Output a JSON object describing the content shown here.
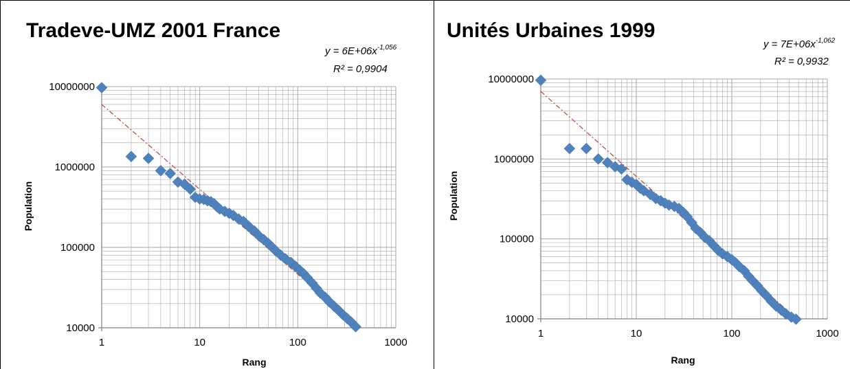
{
  "colors": {
    "marker": "#4F81BD",
    "trendline": "#C0504D",
    "grid": "#A6A6A6",
    "border": "#000000"
  },
  "chart_data": [
    {
      "type": "scatter",
      "title": "Tradeve-UMZ 2001 France",
      "equation": {
        "prefix": "y = 6E+06x",
        "exponent": "-1,056"
      },
      "r2": "R² = 0,9904",
      "xlabel": "Rang",
      "ylabel": "Population",
      "x_scale": "log",
      "y_scale": "log",
      "xlim": [
        1,
        1000
      ],
      "ylim": [
        10000,
        10000000
      ],
      "xticks": [
        "1",
        "10",
        "100",
        "1000"
      ],
      "yticks": [
        "10000",
        "100000",
        "1000000",
        "10000000"
      ],
      "grid": true,
      "trendline": {
        "type": "power",
        "a": 6000000,
        "b": -1.056,
        "style": "dash-dot"
      },
      "series": [
        {
          "marker": "diamond",
          "points": [
            [
              1,
              9700000
            ],
            [
              2,
              1350000
            ],
            [
              3,
              1280000
            ],
            [
              4,
              900000
            ],
            [
              5,
              830000
            ],
            [
              6,
              650000
            ],
            [
              7,
              610000
            ],
            [
              8,
              530000
            ],
            [
              9,
              420000
            ],
            [
              10,
              400000
            ],
            [
              11,
              395000
            ],
            [
              12,
              380000
            ],
            [
              13,
              370000
            ],
            [
              14,
              350000
            ],
            [
              15,
              320000
            ],
            [
              16,
              300000
            ],
            [
              18,
              280000
            ],
            [
              20,
              265000
            ],
            [
              22,
              250000
            ],
            [
              25,
              225000
            ],
            [
              28,
              210000
            ],
            [
              32,
              180000
            ],
            [
              36,
              160000
            ],
            [
              40,
              140000
            ],
            [
              45,
              125000
            ],
            [
              50,
              112000
            ],
            [
              55,
              100000
            ],
            [
              60,
              90000
            ],
            [
              67,
              80000
            ],
            [
              75,
              72000
            ],
            [
              85,
              65000
            ],
            [
              95,
              58000
            ],
            [
              105,
              52000
            ],
            [
              115,
              47000
            ],
            [
              125,
              42000
            ],
            [
              140,
              36000
            ],
            [
              155,
              31000
            ],
            [
              170,
              27000
            ],
            [
              190,
              24000
            ],
            [
              210,
              21000
            ],
            [
              235,
              18500
            ],
            [
              260,
              16500
            ],
            [
              290,
              14500
            ],
            [
              320,
              13000
            ],
            [
              350,
              11800
            ],
            [
              390,
              10300
            ]
          ]
        }
      ]
    },
    {
      "type": "scatter",
      "title": "Unités Urbaines 1999",
      "equation": {
        "prefix": "y = 7E+06x",
        "exponent": "-1,062"
      },
      "r2": "R² = 0,9932",
      "xlabel": "Rang",
      "ylabel": "Population",
      "x_scale": "log",
      "y_scale": "log",
      "xlim": [
        1,
        1000
      ],
      "ylim": [
        10000,
        10000000
      ],
      "xticks": [
        "1",
        "10",
        "100",
        "1000"
      ],
      "yticks": [
        "10000",
        "100000",
        "1000000",
        "10000000"
      ],
      "grid": true,
      "trendline": {
        "type": "power",
        "a": 7000000,
        "b": -1.062,
        "style": "dash-dot"
      },
      "series": [
        {
          "marker": "diamond",
          "points": [
            [
              1,
              9650000
            ],
            [
              2,
              1350000
            ],
            [
              3,
              1350000
            ],
            [
              4,
              1000000
            ],
            [
              5,
              900000
            ],
            [
              6,
              800000
            ],
            [
              7,
              750000
            ],
            [
              8,
              550000
            ],
            [
              9,
              510000
            ],
            [
              10,
              480000
            ],
            [
              11,
              430000
            ],
            [
              12,
              400000
            ],
            [
              14,
              360000
            ],
            [
              16,
              320000
            ],
            [
              18,
              300000
            ],
            [
              20,
              280000
            ],
            [
              22,
              265000
            ],
            [
              25,
              255000
            ],
            [
              28,
              240000
            ],
            [
              31,
              215000
            ],
            [
              34,
              190000
            ],
            [
              38,
              160000
            ],
            [
              42,
              135000
            ],
            [
              47,
              120000
            ],
            [
              52,
              105000
            ],
            [
              58,
              95000
            ],
            [
              65,
              82000
            ],
            [
              72,
              72000
            ],
            [
              80,
              65000
            ],
            [
              90,
              60000
            ],
            [
              100,
              55000
            ],
            [
              110,
              50000
            ],
            [
              120,
              45000
            ],
            [
              135,
              40000
            ],
            [
              150,
              34000
            ],
            [
              165,
              30000
            ],
            [
              185,
              26000
            ],
            [
              205,
              22500
            ],
            [
              230,
              19500
            ],
            [
              260,
              16500
            ],
            [
              290,
              14500
            ],
            [
              330,
              12800
            ],
            [
              370,
              11500
            ],
            [
              420,
              10500
            ],
            [
              470,
              9900
            ]
          ]
        }
      ]
    }
  ]
}
